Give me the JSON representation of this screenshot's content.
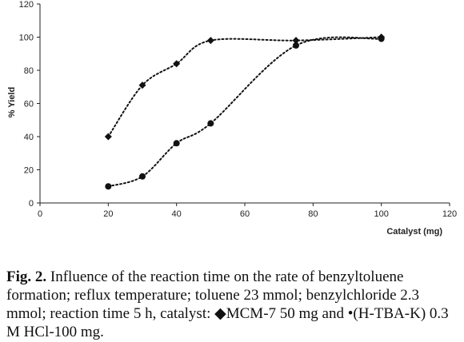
{
  "chart_data": {
    "type": "line",
    "title": "",
    "xlabel": "Catalyst (mg)",
    "ylabel": "% Yield",
    "xlim": [
      0,
      120
    ],
    "ylim": [
      0,
      120
    ],
    "xticks": [
      0,
      20,
      40,
      60,
      80,
      100,
      120
    ],
    "yticks": [
      0,
      20,
      40,
      60,
      80,
      100,
      120
    ],
    "grid": false,
    "series": [
      {
        "marker": "diamond",
        "line_style": "dotted",
        "color": "#111111",
        "points": [
          [
            20,
            40
          ],
          [
            30,
            71
          ],
          [
            40,
            84
          ],
          [
            50,
            98
          ],
          [
            75,
            98
          ],
          [
            100,
            100
          ]
        ]
      },
      {
        "marker": "circle",
        "line_style": "dotted",
        "color": "#111111",
        "points": [
          [
            20,
            10
          ],
          [
            30,
            16
          ],
          [
            40,
            36
          ],
          [
            50,
            48
          ],
          [
            75,
            95
          ],
          [
            100,
            99
          ]
        ]
      }
    ]
  },
  "caption": {
    "label": "Fig. 2.",
    "text": "Influence of the reaction time on the rate of benzyltoluene formation; reflux temperature; toluene 23 mmol; benzylchloride 2.3 mmol; reaction time 5 h, catalyst: ◆MCM-7 50 mg and •(H-TBA-K) 0.3 M HCl-100 mg."
  }
}
